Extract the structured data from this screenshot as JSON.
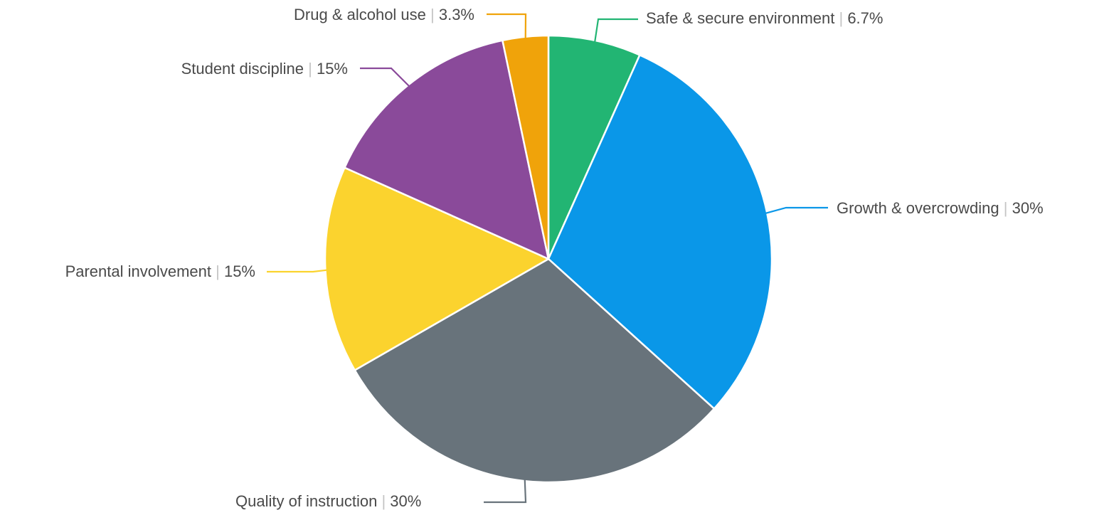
{
  "chart_data": {
    "type": "pie",
    "title": "",
    "separator": "|",
    "slices": [
      {
        "name": "Safe & secure environment",
        "value": 6.7,
        "label": "6.7%",
        "color": "#22b573"
      },
      {
        "name": "Growth & overcrowding",
        "value": 30,
        "label": "30%",
        "color": "#0a97e8"
      },
      {
        "name": "Quality of instruction",
        "value": 30,
        "label": "30%",
        "color": "#68737b"
      },
      {
        "name": "Parental involvement",
        "value": 15,
        "label": "15%",
        "color": "#fbd32e"
      },
      {
        "name": "Student discipline",
        "value": 15,
        "label": "15%",
        "color": "#8a4a9a"
      },
      {
        "name": "Drug & alcohol use",
        "value": 3.3,
        "label": "3.3%",
        "color": "#f0a30a"
      }
    ],
    "start_angle": "12 o'clock",
    "direction": "clockwise",
    "labels": "outside with leader lines"
  }
}
